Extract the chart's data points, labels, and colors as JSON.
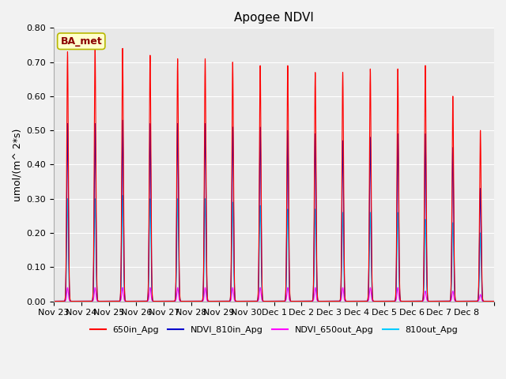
{
  "title": "Apogee NDVI",
  "ylabel": "umol/(m^ 2*s)",
  "ylim": [
    0,
    0.8
  ],
  "yticks": [
    0.0,
    0.1,
    0.2,
    0.3,
    0.4,
    0.5,
    0.6,
    0.7,
    0.8
  ],
  "plot_bg_color": "#e8e8e8",
  "fig_bg_color": "#f2f2f2",
  "annotation_text": "BA_met",
  "annotation_color": "#8b0000",
  "annotation_bg": "#ffffcc",
  "annotation_edge": "#b8b800",
  "legend_entries": [
    "650in_Apg",
    "NDVI_810in_Apg",
    "NDVI_650out_Apg",
    "810out_Apg"
  ],
  "line_colors": [
    "#ff0000",
    "#0000cc",
    "#ff00ff",
    "#00ccff"
  ],
  "date_labels": [
    "Nov 23",
    "Nov 24",
    "Nov 25",
    "Nov 26",
    "Nov 27",
    "Nov 28",
    "Nov 29",
    "Nov 30",
    "Dec 1",
    "Dec 2",
    "Dec 3",
    "Dec 4",
    "Dec 5",
    "Dec 6",
    "Dec 7",
    "Dec 8"
  ],
  "red_peaks": [
    0.73,
    0.74,
    0.74,
    0.72,
    0.71,
    0.71,
    0.7,
    0.69,
    0.69,
    0.67,
    0.67,
    0.68,
    0.68,
    0.69,
    0.6,
    0.5
  ],
  "blue_peaks": [
    0.52,
    0.52,
    0.53,
    0.52,
    0.52,
    0.52,
    0.51,
    0.51,
    0.5,
    0.49,
    0.47,
    0.48,
    0.49,
    0.49,
    0.45,
    0.33
  ],
  "cyan_peaks": [
    0.3,
    0.3,
    0.31,
    0.3,
    0.3,
    0.3,
    0.29,
    0.28,
    0.27,
    0.27,
    0.26,
    0.26,
    0.26,
    0.24,
    0.23,
    0.2
  ],
  "magenta_peaks": [
    0.04,
    0.04,
    0.04,
    0.04,
    0.04,
    0.04,
    0.04,
    0.04,
    0.04,
    0.04,
    0.04,
    0.04,
    0.04,
    0.03,
    0.03,
    0.02
  ],
  "sharpness": 600,
  "points_per_day": 500,
  "num_days": 16,
  "linewidth": 0.8,
  "title_fontsize": 11,
  "axis_fontsize": 8,
  "ylabel_fontsize": 9,
  "legend_fontsize": 8
}
